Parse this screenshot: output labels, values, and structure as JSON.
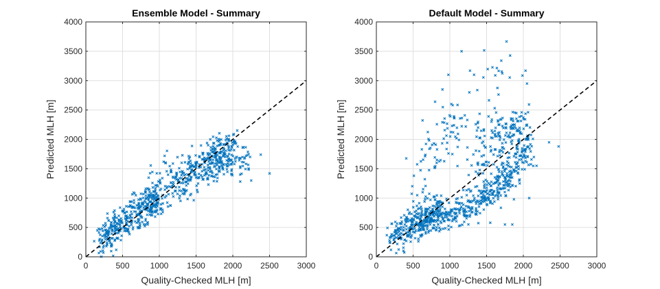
{
  "chart_data": [
    {
      "type": "scatter",
      "title": "Ensemble Model - Summary",
      "xlabel": "Quality-Checked MLH [m]",
      "ylabel": "Predicted MLH [m]",
      "xlim": [
        0,
        3000
      ],
      "ylim": [
        0,
        4000
      ],
      "xticks": [
        "0",
        "500",
        "1000",
        "1500",
        "2000",
        "2500",
        "3000"
      ],
      "yticks": [
        "0",
        "500",
        "1000",
        "1500",
        "2000",
        "2500",
        "3000",
        "3500",
        "4000"
      ],
      "grid": true,
      "reference_line": {
        "style": "dashed",
        "color": "#000000",
        "x": [
          0,
          3000
        ],
        "y": [
          0,
          3000
        ]
      },
      "marker_color": "#0072bd",
      "cloud": {
        "segments": [
          {
            "x": [
              200,
              1000
            ],
            "y": [
              330,
              1000
            ],
            "spread": 150,
            "n": 360
          },
          {
            "x": [
              800,
              1300
            ],
            "y": [
              1000,
              1400
            ],
            "spread": 200,
            "n": 110
          },
          {
            "x": [
              1300,
              1850
            ],
            "y": [
              1300,
              1750
            ],
            "spread": 170,
            "n": 200
          },
          {
            "x": [
              1750,
              2200
            ],
            "y": [
              1600,
              1650
            ],
            "spread": 110,
            "n": 90
          },
          {
            "x": [
              1700,
              2050
            ],
            "y": [
              1750,
              2000
            ],
            "spread": 90,
            "n": 60
          }
        ],
        "extra_points": [
          [
            2060,
            2150
          ],
          [
            2380,
            1740
          ],
          [
            2500,
            1420
          ],
          [
            2250,
            1300
          ],
          [
            1280,
            1040
          ],
          [
            1180,
            1080
          ],
          [
            1420,
            1050
          ],
          [
            2100,
            1400
          ]
        ]
      }
    },
    {
      "type": "scatter",
      "title": "Default Model - Summary",
      "xlabel": "Quality-Checked MLH [m]",
      "ylabel": "Predicted MLH [m]",
      "xlim": [
        0,
        3000
      ],
      "ylim": [
        0,
        4000
      ],
      "xticks": [
        "0",
        "500",
        "1000",
        "1500",
        "2000",
        "2500",
        "3000"
      ],
      "yticks": [
        "0",
        "500",
        "1000",
        "1500",
        "2000",
        "2500",
        "3000",
        "3500",
        "4000"
      ],
      "grid": true,
      "reference_line": {
        "style": "dashed",
        "color": "#000000",
        "x": [
          0,
          3000
        ],
        "y": [
          0,
          3000
        ]
      },
      "marker_color": "#0072bd",
      "cloud": {
        "segments": [
          {
            "x": [
              200,
              900
            ],
            "y": [
              280,
              900
            ],
            "spread": 140,
            "n": 270
          },
          {
            "x": [
              600,
              1200
            ],
            "y": [
              500,
              800
            ],
            "spread": 110,
            "n": 150
          },
          {
            "x": [
              1200,
              1700
            ],
            "y": [
              800,
              1200
            ],
            "spread": 120,
            "n": 150
          },
          {
            "x": [
              1700,
              2100
            ],
            "y": [
              1200,
              2000
            ],
            "spread": 160,
            "n": 160
          },
          {
            "x": [
              1300,
              1700
            ],
            "y": [
              1500,
              2300
            ],
            "spread": 260,
            "n": 90
          },
          {
            "x": [
              1700,
              2000
            ],
            "y": [
              2000,
              2350
            ],
            "spread": 170,
            "n": 70
          },
          {
            "x": [
              550,
              1100
            ],
            "y": [
              1300,
              2400
            ],
            "spread": 300,
            "n": 70
          },
          {
            "x": [
              1000,
              1900
            ],
            "y": [
              2400,
              3300
            ],
            "spread": 280,
            "n": 30
          }
        ],
        "extra_points": [
          [
            1160,
            3500
          ],
          [
            1700,
            3340
          ],
          [
            2030,
            3170
          ],
          [
            2050,
            2950
          ],
          [
            1330,
            3100
          ],
          [
            980,
            3100
          ],
          [
            900,
            2850
          ],
          [
            2350,
            1950
          ],
          [
            2480,
            1880
          ],
          [
            2050,
            2250
          ],
          [
            2180,
            1550
          ],
          [
            1950,
            1250
          ],
          [
            2080,
            1000
          ],
          [
            1750,
            550
          ],
          [
            1850,
            550
          ],
          [
            1550,
            580
          ],
          [
            1650,
            1300
          ]
        ]
      }
    }
  ]
}
